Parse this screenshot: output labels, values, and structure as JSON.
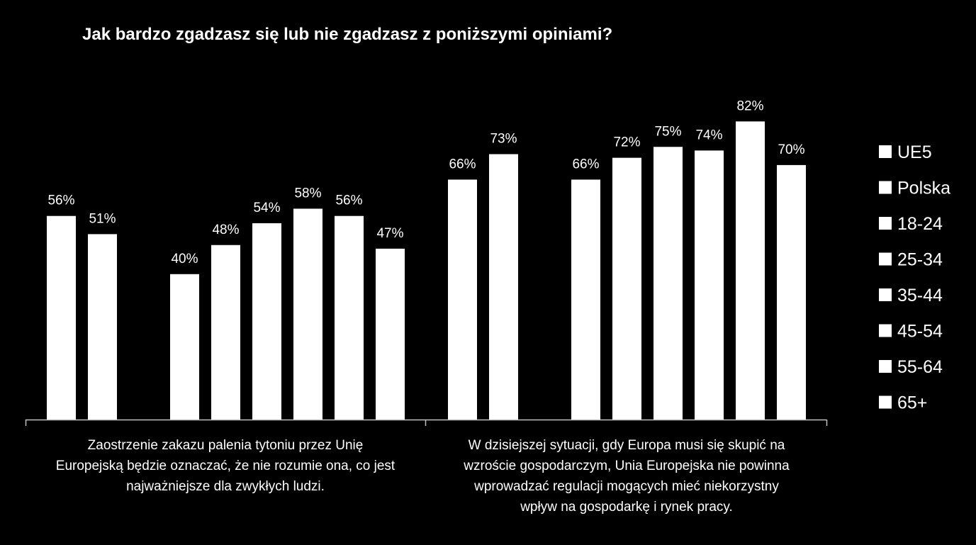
{
  "chart_data": {
    "type": "bar",
    "title": "Jak bardzo zgadzasz się lub nie zgadzasz z poniższymi opiniami?",
    "xlabel": "",
    "ylabel": "",
    "ylim": [
      0,
      100
    ],
    "grid": false,
    "legend_position": "right",
    "categories": [
      [
        "Zaostrzenie zakazu palenia tytoniu przez Unię",
        "Europejską będzie oznaczać, że nie rozumie ona, co jest",
        "najważniejsze dla zwykłych ludzi."
      ],
      [
        "W dzisiejszej sytuacji, gdy Europa musi się skupić na",
        "wzroście gospodarczym, Unia Europejska nie powinna",
        "wprowadzać regulacji mogących mieć niekorzystny",
        "wpływ na gospodarkę i rynek pracy."
      ]
    ],
    "series": [
      {
        "name": "UE5",
        "values": [
          56,
          66
        ],
        "labels": [
          "56%",
          "66%"
        ]
      },
      {
        "name": "Polska",
        "values": [
          51,
          73
        ],
        "labels": [
          "51%",
          "73%"
        ]
      },
      {
        "name": "18-24",
        "values": [
          null,
          null
        ],
        "labels": [
          "",
          ""
        ]
      },
      {
        "name": "25-34",
        "values": [
          40,
          66
        ],
        "labels": [
          "40%",
          "66%"
        ]
      },
      {
        "name": "35-44",
        "values": [
          48,
          72
        ],
        "labels": [
          "48%",
          "72%"
        ]
      },
      {
        "name": "45-54",
        "values": [
          54,
          75
        ],
        "labels": [
          "54%",
          "75%"
        ]
      },
      {
        "name": "55-64",
        "values": [
          58,
          74
        ],
        "labels": [
          "58%",
          "74%"
        ]
      },
      {
        "name": "65+",
        "values": [
          56,
          82
        ],
        "labels": [
          "56%",
          "82%"
        ]
      },
      {
        "name": "",
        "values": [
          47,
          70
        ],
        "labels": [
          "47%",
          "70%"
        ]
      }
    ],
    "colors": {
      "background": "#000000",
      "bar": "#ffffff",
      "text": "#ffffff",
      "axis": "#bfbfbf"
    }
  }
}
